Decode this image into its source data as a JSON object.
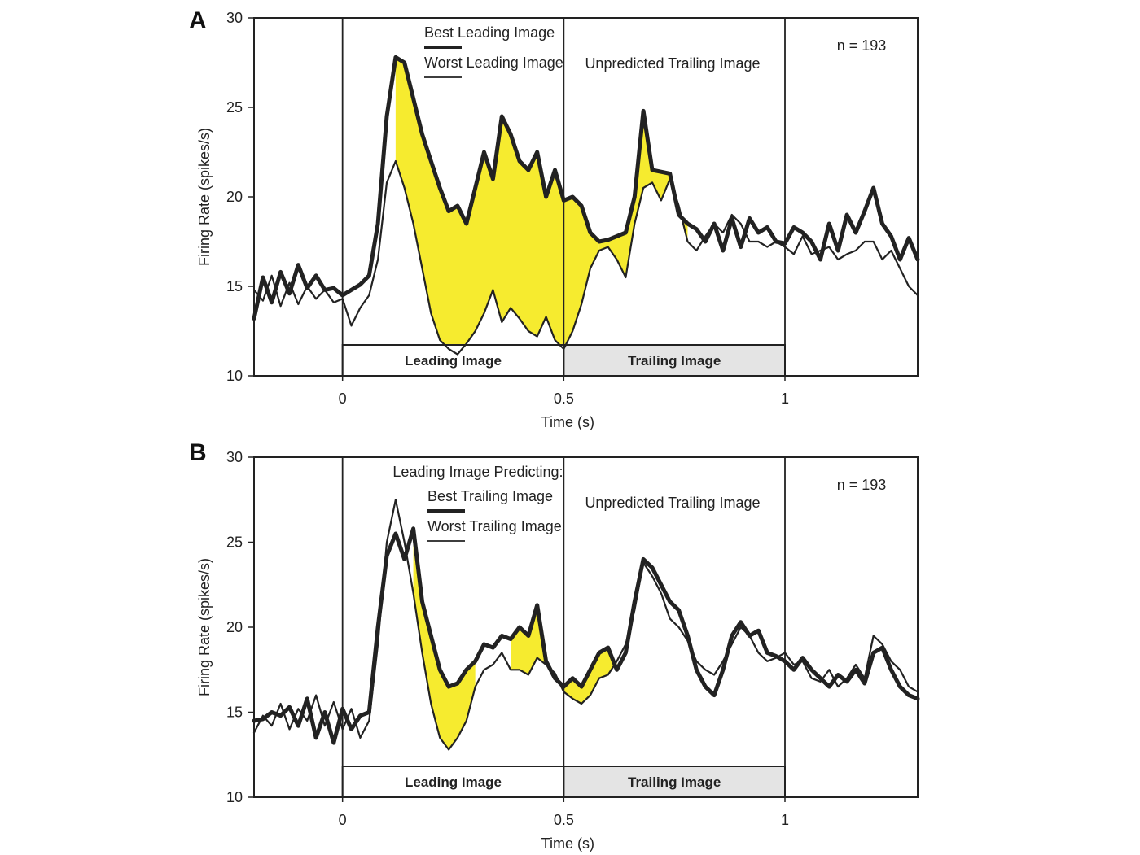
{
  "chart_data": [
    {
      "type": "line",
      "panel_label": "A",
      "xlabel": "Time (s)",
      "ylabel": "Firing Rate (spikes/s)",
      "xlim": [
        -0.2,
        1.3
      ],
      "ylim": [
        10,
        30
      ],
      "xticks": [
        0,
        0.5,
        1
      ],
      "xtick_labels": [
        "0",
        "0.5",
        "1"
      ],
      "yticks": [
        10,
        15,
        20,
        25,
        30
      ],
      "ytick_labels": [
        "10",
        "15",
        "20",
        "25",
        "30"
      ],
      "annotation": "n = 193",
      "legend": {
        "entries": [
          "Best Leading Image",
          "Worst Leading Image"
        ]
      },
      "region_label": "Unpredicted Trailing Image",
      "bar_labels": [
        "Leading Image",
        "Trailing Image"
      ],
      "fill_color": "#f6eb2f",
      "bar_fill_color": "#e4e4e4",
      "series": [
        {
          "name": "Best Leading Image",
          "x": [
            -0.2,
            -0.18,
            -0.16,
            -0.14,
            -0.12,
            -0.1,
            -0.08,
            -0.06,
            -0.04,
            -0.02,
            0,
            0.02,
            0.04,
            0.06,
            0.08,
            0.1,
            0.12,
            0.14,
            0.16,
            0.18,
            0.2,
            0.22,
            0.24,
            0.26,
            0.28,
            0.3,
            0.32,
            0.34,
            0.36,
            0.38,
            0.4,
            0.42,
            0.44,
            0.46,
            0.48,
            0.5,
            0.52,
            0.54,
            0.56,
            0.58,
            0.6,
            0.62,
            0.64,
            0.66,
            0.68,
            0.7,
            0.72,
            0.74,
            0.76,
            0.78,
            0.8,
            0.82,
            0.84,
            0.86,
            0.88,
            0.9,
            0.92,
            0.94,
            0.96,
            0.98,
            1,
            1.02,
            1.04,
            1.06,
            1.08,
            1.1,
            1.12,
            1.14,
            1.16,
            1.18,
            1.2,
            1.22,
            1.24,
            1.26,
            1.28,
            1.3
          ],
          "y": [
            13.2,
            15.5,
            14.1,
            15.8,
            14.6,
            16.2,
            14.9,
            15.6,
            14.8,
            14.9,
            14.5,
            14.8,
            15.1,
            15.6,
            18.5,
            24.5,
            27.8,
            27.5,
            25.5,
            23.5,
            22.0,
            20.5,
            19.2,
            19.5,
            18.5,
            20.5,
            22.5,
            21.0,
            24.5,
            23.5,
            22.0,
            21.5,
            22.5,
            20.0,
            21.5,
            19.8,
            20.0,
            19.5,
            18.0,
            17.5,
            17.6,
            17.8,
            18.0,
            20.0,
            24.8,
            21.5,
            21.4,
            21.3,
            19.0,
            18.5,
            18.2,
            17.5,
            18.5,
            17.0,
            18.8,
            17.2,
            18.8,
            18.0,
            18.3,
            17.5,
            17.4,
            18.3,
            18.0,
            17.5,
            16.5,
            18.5,
            17.0,
            19.0,
            18.0,
            19.2,
            20.5,
            18.5,
            17.8,
            16.5,
            17.7,
            16.5
          ]
        },
        {
          "name": "Worst Leading Image",
          "x": [
            -0.2,
            -0.18,
            -0.16,
            -0.14,
            -0.12,
            -0.1,
            -0.08,
            -0.06,
            -0.04,
            -0.02,
            0,
            0.02,
            0.04,
            0.06,
            0.08,
            0.1,
            0.12,
            0.14,
            0.16,
            0.18,
            0.2,
            0.22,
            0.24,
            0.26,
            0.28,
            0.3,
            0.32,
            0.34,
            0.36,
            0.38,
            0.4,
            0.42,
            0.44,
            0.46,
            0.48,
            0.5,
            0.52,
            0.54,
            0.56,
            0.58,
            0.6,
            0.62,
            0.64,
            0.66,
            0.68,
            0.7,
            0.72,
            0.74,
            0.76,
            0.78,
            0.8,
            0.82,
            0.84,
            0.86,
            0.88,
            0.9,
            0.92,
            0.94,
            0.96,
            0.98,
            1,
            1.02,
            1.04,
            1.06,
            1.08,
            1.1,
            1.12,
            1.14,
            1.16,
            1.18,
            1.2,
            1.22,
            1.24,
            1.26,
            1.28,
            1.3
          ],
          "y": [
            14.8,
            14.2,
            15.6,
            13.9,
            15.2,
            14.0,
            15.0,
            14.3,
            14.8,
            14.1,
            14.3,
            12.8,
            13.8,
            14.5,
            16.5,
            20.8,
            22.0,
            20.5,
            18.5,
            16.0,
            13.5,
            12.0,
            11.5,
            11.2,
            11.8,
            12.5,
            13.5,
            14.8,
            13.0,
            13.8,
            13.2,
            12.5,
            12.2,
            13.3,
            12.0,
            11.5,
            12.5,
            14.0,
            16.0,
            17.0,
            17.2,
            16.5,
            15.5,
            18.5,
            20.5,
            20.8,
            19.8,
            21.0,
            19.5,
            17.5,
            17.0,
            17.8,
            18.5,
            18.0,
            19.0,
            18.5,
            17.5,
            17.5,
            17.2,
            17.5,
            17.2,
            16.8,
            17.8,
            16.8,
            17.0,
            17.2,
            16.5,
            16.8,
            17.0,
            17.5,
            17.5,
            16.5,
            17.0,
            16.0,
            15.0,
            14.5
          ]
        }
      ],
      "highlight_ranges": [
        [
          0.12,
          0.58
        ],
        [
          0.58,
          0.78
        ]
      ],
      "bars": [
        {
          "label": "Leading Image",
          "x_range": [
            0,
            0.5
          ]
        },
        {
          "label": "Trailing Image",
          "x_range": [
            0.5,
            1
          ]
        }
      ],
      "stimulus_lines_x": [
        0,
        0.5,
        1
      ],
      "grid": false
    },
    {
      "type": "line",
      "panel_label": "B",
      "xlabel": "Time (s)",
      "ylabel": "Firing Rate (spikes/s)",
      "xlim": [
        -0.2,
        1.3
      ],
      "ylim": [
        10,
        30
      ],
      "xticks": [
        0,
        0.5,
        1
      ],
      "xtick_labels": [
        "0",
        "0.5",
        "1"
      ],
      "yticks": [
        10,
        15,
        20,
        25,
        30
      ],
      "ytick_labels": [
        "10",
        "15",
        "20",
        "25",
        "30"
      ],
      "annotation": "n = 193",
      "legend": {
        "title": "Leading Image Predicting:",
        "entries": [
          "Best Trailing Image",
          "Worst Trailing Image"
        ]
      },
      "region_label": "Unpredicted Trailing Image",
      "bar_labels": [
        "Leading Image",
        "Trailing Image"
      ],
      "fill_color": "#f6eb2f",
      "bar_fill_color": "#e4e4e4",
      "series": [
        {
          "name": "Best Trailing Image",
          "x": [
            -0.2,
            -0.18,
            -0.16,
            -0.14,
            -0.12,
            -0.1,
            -0.08,
            -0.06,
            -0.04,
            -0.02,
            0,
            0.02,
            0.04,
            0.06,
            0.08,
            0.1,
            0.12,
            0.14,
            0.16,
            0.18,
            0.2,
            0.22,
            0.24,
            0.26,
            0.28,
            0.3,
            0.32,
            0.34,
            0.36,
            0.38,
            0.4,
            0.42,
            0.44,
            0.46,
            0.48,
            0.5,
            0.52,
            0.54,
            0.56,
            0.58,
            0.6,
            0.62,
            0.64,
            0.66,
            0.68,
            0.7,
            0.72,
            0.74,
            0.76,
            0.78,
            0.8,
            0.82,
            0.84,
            0.86,
            0.88,
            0.9,
            0.92,
            0.94,
            0.96,
            0.98,
            1,
            1.02,
            1.04,
            1.06,
            1.08,
            1.1,
            1.12,
            1.14,
            1.16,
            1.18,
            1.2,
            1.22,
            1.24,
            1.26,
            1.28,
            1.3
          ],
          "y": [
            14.5,
            14.6,
            15.0,
            14.8,
            15.3,
            14.2,
            15.8,
            13.5,
            15.0,
            13.2,
            15.2,
            14.0,
            14.8,
            15.0,
            20.0,
            24.2,
            25.5,
            24.0,
            25.8,
            21.5,
            19.5,
            17.5,
            16.5,
            16.7,
            17.5,
            18.0,
            19.0,
            18.8,
            19.5,
            19.3,
            20.0,
            19.5,
            21.3,
            18.0,
            17.0,
            16.5,
            17.0,
            16.5,
            17.5,
            18.5,
            18.8,
            17.5,
            18.5,
            21.5,
            24.0,
            23.5,
            22.5,
            21.5,
            21.0,
            19.5,
            17.5,
            16.5,
            16.0,
            17.5,
            19.5,
            20.3,
            19.5,
            19.8,
            18.5,
            18.3,
            18.0,
            17.5,
            18.2,
            17.5,
            17.0,
            16.5,
            17.2,
            16.8,
            17.5,
            16.7,
            18.5,
            18.8,
            17.5,
            16.5,
            16.0,
            15.8
          ]
        },
        {
          "name": "Worst Trailing Image",
          "x": [
            -0.2,
            -0.18,
            -0.16,
            -0.14,
            -0.12,
            -0.1,
            -0.08,
            -0.06,
            -0.04,
            -0.02,
            0,
            0.02,
            0.04,
            0.06,
            0.08,
            0.1,
            0.12,
            0.14,
            0.16,
            0.18,
            0.2,
            0.22,
            0.24,
            0.26,
            0.28,
            0.3,
            0.32,
            0.34,
            0.36,
            0.38,
            0.4,
            0.42,
            0.44,
            0.46,
            0.48,
            0.5,
            0.52,
            0.54,
            0.56,
            0.58,
            0.6,
            0.62,
            0.64,
            0.66,
            0.68,
            0.7,
            0.72,
            0.74,
            0.76,
            0.78,
            0.8,
            0.82,
            0.84,
            0.86,
            0.88,
            0.9,
            0.92,
            0.94,
            0.96,
            0.98,
            1,
            1.02,
            1.04,
            1.06,
            1.08,
            1.1,
            1.12,
            1.14,
            1.16,
            1.18,
            1.2,
            1.22,
            1.24,
            1.26,
            1.28,
            1.3
          ],
          "y": [
            13.8,
            14.8,
            14.2,
            15.5,
            14.0,
            15.2,
            14.5,
            16.0,
            14.2,
            15.6,
            14.0,
            15.2,
            13.5,
            14.5,
            19.0,
            25.0,
            27.5,
            25.0,
            22.0,
            18.5,
            15.5,
            13.5,
            12.8,
            13.5,
            14.5,
            16.5,
            17.5,
            17.8,
            18.5,
            17.5,
            17.5,
            17.2,
            18.2,
            17.8,
            17.3,
            16.2,
            15.8,
            15.5,
            16.0,
            17.0,
            17.2,
            18.0,
            19.0,
            21.0,
            23.8,
            23.0,
            22.0,
            20.5,
            20.0,
            19.2,
            18.0,
            17.5,
            17.2,
            18.0,
            19.0,
            20.0,
            19.5,
            18.5,
            18.0,
            18.2,
            18.5,
            17.8,
            18.0,
            17.0,
            16.8,
            17.5,
            16.5,
            17.0,
            17.8,
            17.0,
            19.5,
            19.0,
            18.0,
            17.5,
            16.5,
            16.2
          ]
        }
      ],
      "highlight_ranges": [
        [
          0.15,
          0.3
        ],
        [
          0.38,
          0.47
        ],
        [
          0.5,
          0.62
        ]
      ],
      "bars": [
        {
          "label": "Leading Image",
          "x_range": [
            0,
            0.5
          ]
        },
        {
          "label": "Trailing Image",
          "x_range": [
            0.5,
            1
          ]
        }
      ],
      "stimulus_lines_x": [
        0,
        0.5,
        1
      ],
      "grid": false
    }
  ]
}
